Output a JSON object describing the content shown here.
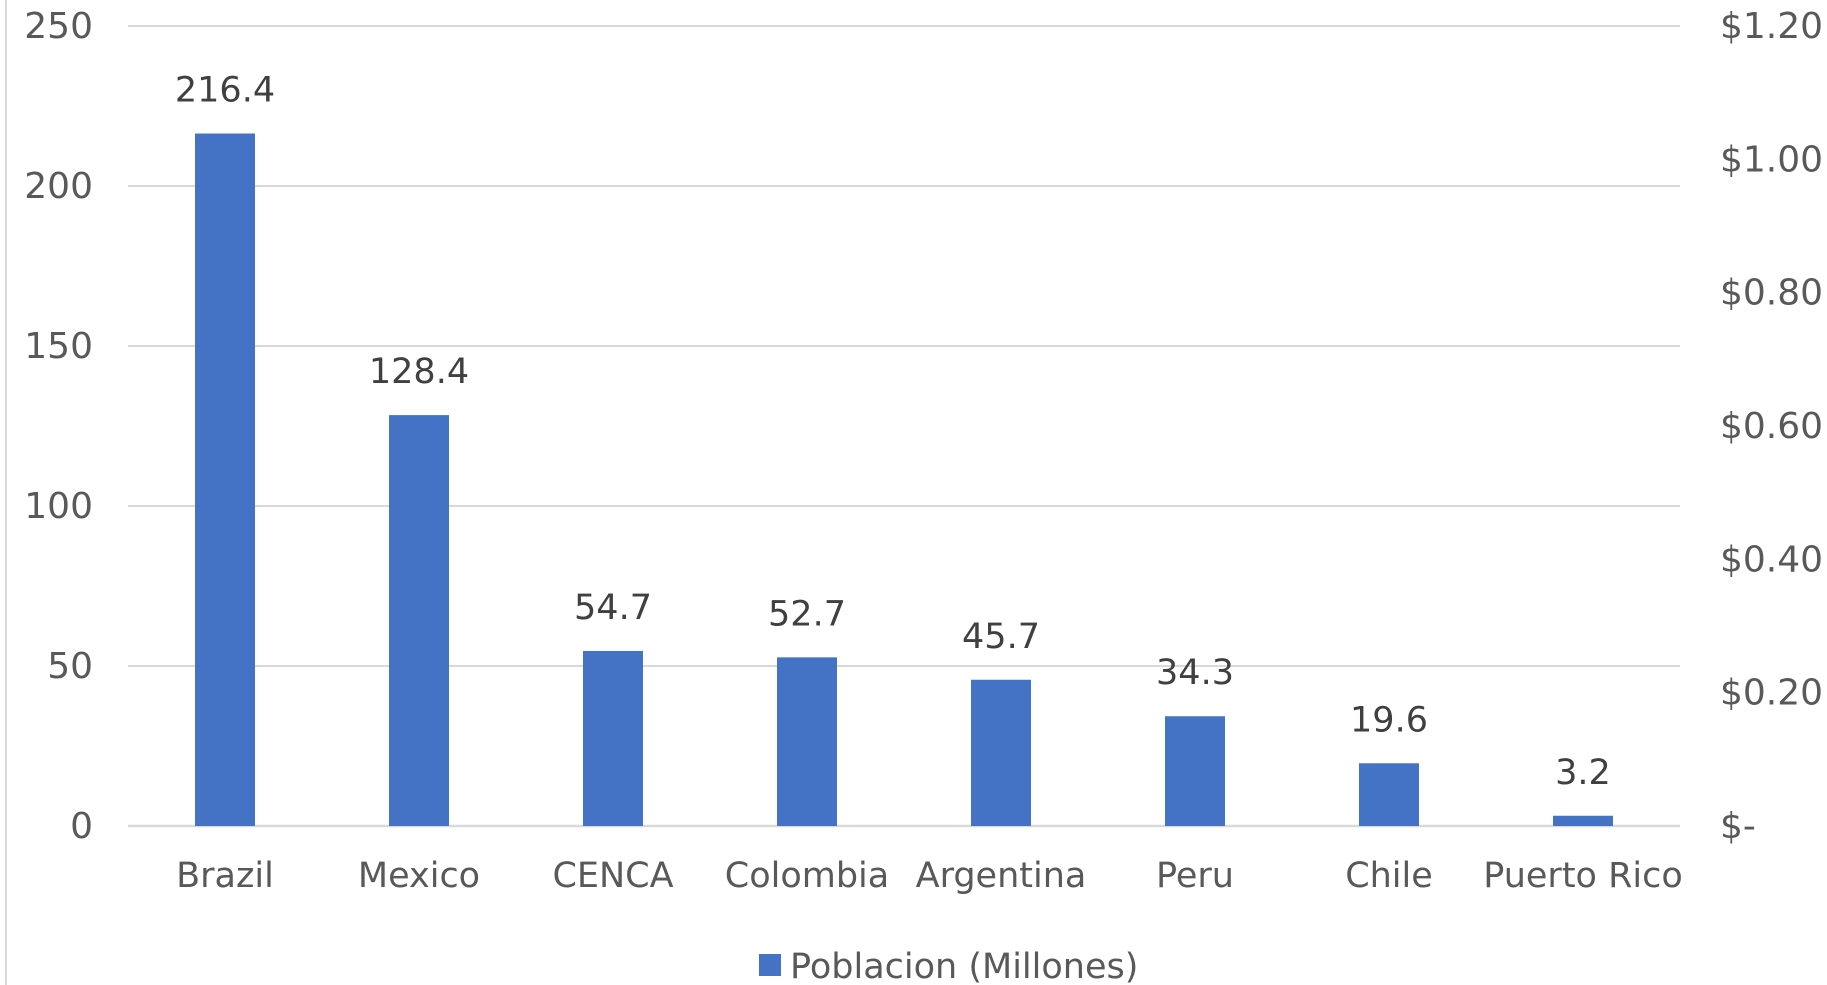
{
  "chart_data": {
    "type": "bar",
    "categories": [
      "Brazil",
      "Mexico",
      "CENCA",
      "Colombia",
      "Argentina",
      "Peru",
      "Chile",
      "Puerto Rico"
    ],
    "series": [
      {
        "name": "Poblacion (Millones)",
        "values": [
          216.4,
          128.4,
          54.7,
          52.7,
          45.7,
          34.3,
          19.6,
          3.2
        ],
        "data_labels": [
          "216.4",
          "128.4",
          "54.7",
          "52.7",
          "45.7",
          "34.3",
          "19.6",
          "3.2"
        ]
      }
    ],
    "title": "",
    "xlabel": "",
    "ylabel": "",
    "ylim": [
      0,
      250
    ],
    "y_ticks": [
      0,
      50,
      100,
      150,
      200,
      250
    ],
    "y_tick_labels": [
      "0",
      "50",
      "100",
      "150",
      "200",
      "250"
    ],
    "y2lim": [
      0,
      1.2
    ],
    "y2_ticks": [
      0,
      0.2,
      0.4,
      0.6,
      0.8,
      1.0,
      1.2
    ],
    "y2_tick_labels": [
      "$-",
      "$0.20",
      "$0.40",
      "$0.60",
      "$0.80",
      "$1.00",
      "$1.20"
    ],
    "grid": true,
    "legend_position": "bottom",
    "colors": {
      "bar": "#4472C4",
      "grid": "#d9d9d9",
      "axis_text": "#595959",
      "label_text": "#404040"
    }
  }
}
